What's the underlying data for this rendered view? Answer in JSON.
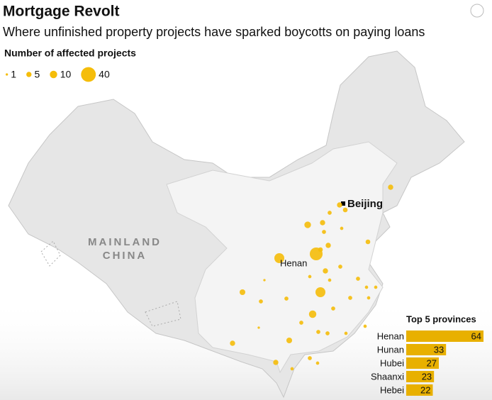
{
  "header": {
    "title": "Mortgage Revolt",
    "subtitle": "Where unfinished property projects have sparked boycotts on paying loans"
  },
  "legend": {
    "title": "Number of affected projects",
    "sizes": [
      1,
      5,
      10,
      40
    ],
    "color": "#f5bd0a"
  },
  "map": {
    "region_label_1": "MAINLAND",
    "region_label_2": "CHINA",
    "city": "Beijing",
    "province": "Henan",
    "bubbles": [
      30,
      18,
      8,
      10,
      5,
      5,
      4,
      3,
      5,
      3,
      5,
      4,
      5,
      18,
      6,
      3,
      3,
      6,
      5,
      5,
      4,
      3,
      3,
      3,
      3,
      3,
      3,
      3,
      3,
      2,
      2,
      2,
      2,
      2,
      2,
      2,
      1,
      1,
      2,
      2,
      2
    ]
  },
  "chart_data": {
    "type": "bar",
    "title": "Top 5 provinces",
    "categories": [
      "Henan",
      "Hunan",
      "Hubei",
      "Shaanxi",
      "Hebei"
    ],
    "values": [
      64,
      33,
      27,
      23,
      22
    ],
    "color": "#e8b000",
    "xlim": [
      0,
      64
    ]
  }
}
